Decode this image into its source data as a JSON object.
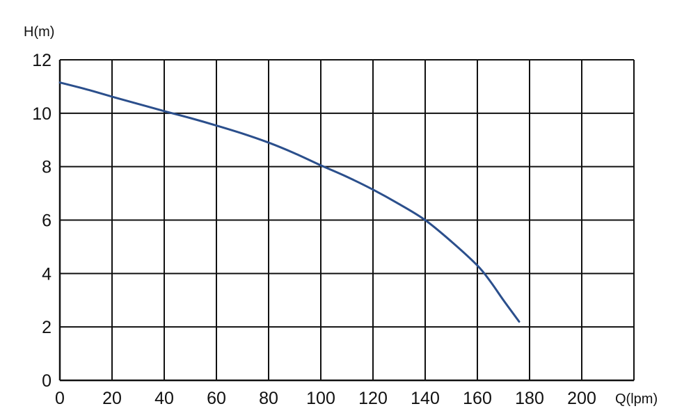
{
  "chart_data": {
    "type": "line",
    "title": "",
    "xlabel": "Q(lpm)",
    "ylabel": "H(m)",
    "xlim": [
      0,
      220
    ],
    "ylim": [
      0,
      12
    ],
    "x_ticks": [
      0,
      20,
      40,
      60,
      80,
      100,
      120,
      140,
      160,
      180,
      200
    ],
    "y_ticks": [
      0,
      2,
      4,
      6,
      8,
      10,
      12
    ],
    "grid": true,
    "series": [
      {
        "name": "",
        "color": "#2b4f8c",
        "x": [
          0,
          10,
          20,
          30,
          40,
          50,
          60,
          70,
          80,
          90,
          100,
          110,
          120,
          130,
          140,
          150,
          160,
          165,
          170,
          176
        ],
        "y": [
          11.15,
          10.9,
          10.62,
          10.35,
          10.08,
          9.82,
          9.54,
          9.24,
          8.9,
          8.5,
          8.05,
          7.62,
          7.14,
          6.6,
          6.0,
          5.2,
          4.3,
          3.7,
          3.0,
          2.2
        ]
      }
    ]
  }
}
